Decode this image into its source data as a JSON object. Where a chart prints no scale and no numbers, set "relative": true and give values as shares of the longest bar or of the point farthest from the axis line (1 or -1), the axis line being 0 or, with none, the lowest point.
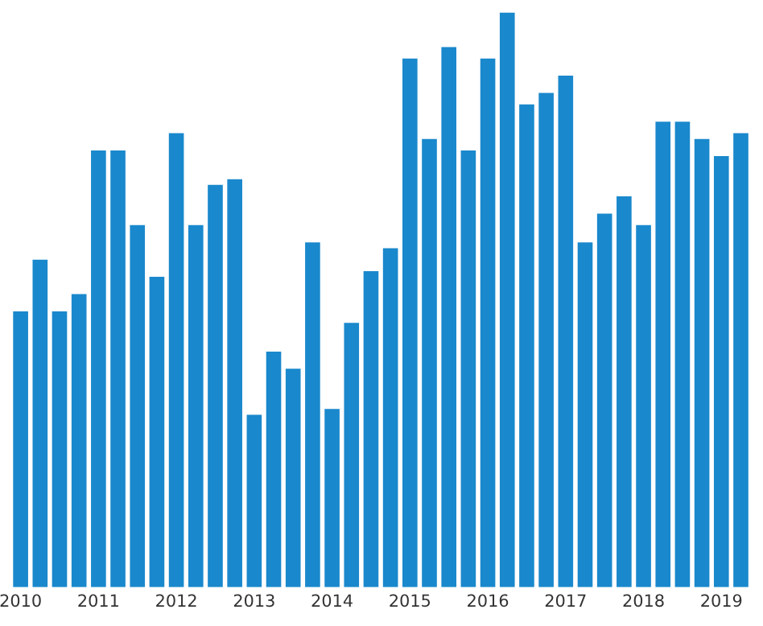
{
  "chart_data": {
    "type": "bar",
    "relative": true,
    "color": "#1a88cc",
    "categories": [
      "2010",
      null,
      null,
      null,
      "2011",
      null,
      null,
      null,
      "2012",
      null,
      null,
      null,
      "2013",
      null,
      null,
      null,
      "2014",
      null,
      null,
      null,
      "2015",
      null,
      null,
      null,
      "2016",
      null,
      null,
      null,
      "2017",
      null,
      null,
      null,
      "2018",
      null,
      null,
      null,
      "2019",
      null
    ],
    "values": [
      0.48,
      0.57,
      0.48,
      0.51,
      0.76,
      0.76,
      0.63,
      0.54,
      0.79,
      0.63,
      0.7,
      0.71,
      0.3,
      0.41,
      0.38,
      0.6,
      0.31,
      0.46,
      0.55,
      0.59,
      0.92,
      0.78,
      0.94,
      0.76,
      0.92,
      1,
      0.84,
      0.86,
      0.89,
      0.6,
      0.65,
      0.68,
      0.63,
      0.81,
      0.81,
      0.78,
      0.75,
      0.79
    ],
    "grid": false,
    "legend": false
  }
}
